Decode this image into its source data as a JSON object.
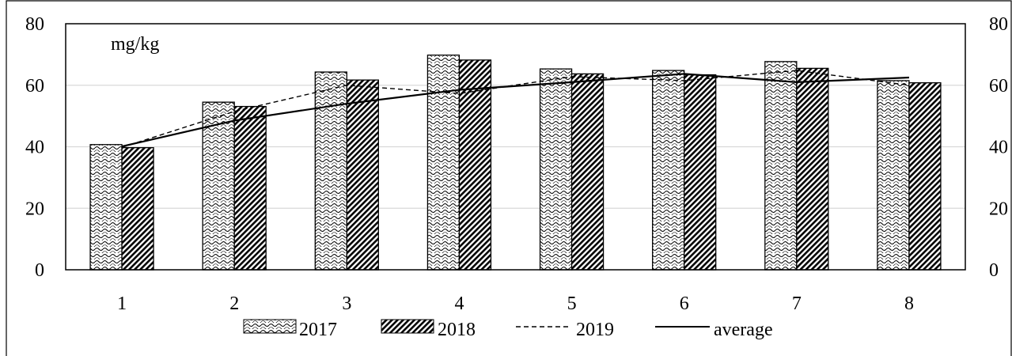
{
  "chart_data": {
    "type": "bar",
    "title": "",
    "unit_label": "mg/kg",
    "categories": [
      "1",
      "2",
      "3",
      "4",
      "5",
      "6",
      "7",
      "8"
    ],
    "series": [
      {
        "name": "2017",
        "type": "bar",
        "pattern": "wave",
        "values": [
          40.7,
          54.5,
          64.3,
          69.8,
          65.3,
          64.8,
          67.7,
          61.5
        ]
      },
      {
        "name": "2018",
        "type": "bar",
        "pattern": "diagonal",
        "values": [
          39.7,
          53.1,
          61.7,
          68.2,
          63.7,
          63.4,
          65.5,
          60.8
        ]
      },
      {
        "name": "2019",
        "type": "line",
        "style": "dashed",
        "values": [
          39.8,
          51.5,
          60.0,
          57.3,
          62.8,
          61.5,
          64.8,
          60.0
        ]
      },
      {
        "name": "average",
        "type": "line",
        "style": "solid",
        "values": [
          40.1,
          48.5,
          54.0,
          58.5,
          61.0,
          63.7,
          61.0,
          62.5
        ]
      }
    ],
    "ylim": [
      0,
      80
    ],
    "yticks": [
      "0",
      "20",
      "40",
      "60",
      "80"
    ],
    "y2ticks": [
      "0",
      "20",
      "40",
      "60",
      "80"
    ],
    "grid": true,
    "legend_position": "bottom"
  }
}
